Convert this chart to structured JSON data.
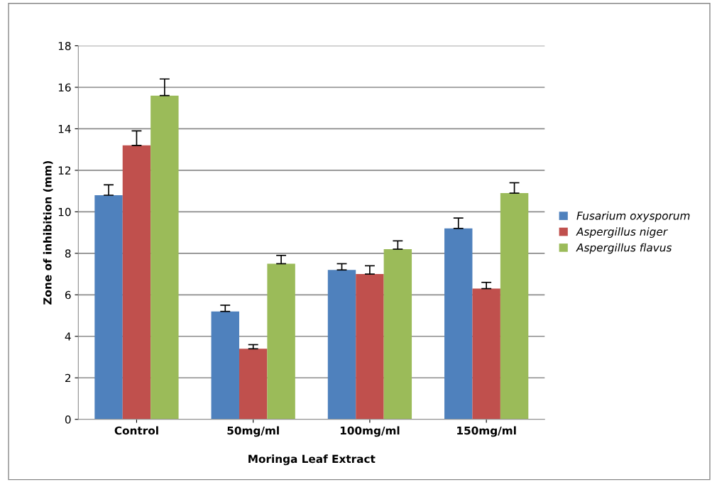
{
  "chart_data": {
    "type": "bar",
    "xlabel": "Moringa Leaf Extract",
    "ylabel": "Zone of inhibition (mm)",
    "categories": [
      "Control",
      "50mg/ml",
      "100mg/ml",
      "150mg/ml"
    ],
    "series": [
      {
        "name": "Fusarium oxysporum",
        "color": "#4f81bd",
        "values": [
          10.8,
          5.2,
          7.2,
          9.2
        ],
        "errors": [
          [
            10.8,
            11.3
          ],
          [
            5.2,
            5.5
          ],
          [
            7.2,
            7.5
          ],
          [
            9.2,
            9.7
          ]
        ]
      },
      {
        "name": "Aspergillus niger",
        "color": "#c0504d",
        "values": [
          13.2,
          3.4,
          7.0,
          6.3
        ],
        "errors": [
          [
            13.2,
            13.9
          ],
          [
            3.4,
            3.6
          ],
          [
            7.0,
            7.4
          ],
          [
            6.3,
            6.6
          ]
        ]
      },
      {
        "name": "Aspergillus flavus",
        "color": "#9bbb59",
        "values": [
          15.6,
          7.5,
          8.2,
          10.9
        ],
        "errors": [
          [
            15.6,
            16.4
          ],
          [
            7.5,
            7.9
          ],
          [
            8.2,
            8.6
          ],
          [
            10.9,
            11.4
          ]
        ]
      }
    ],
    "ylim": [
      0,
      18
    ],
    "yticks": [
      0,
      2,
      4,
      6,
      8,
      10,
      12,
      14,
      16,
      18
    ],
    "grid": "y",
    "legend": "right"
  }
}
